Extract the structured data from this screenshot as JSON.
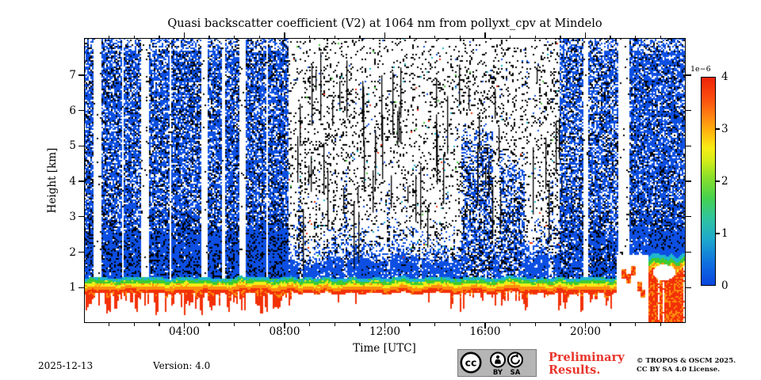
{
  "chart_data": {
    "type": "heatmap",
    "title": "Quasi backscatter coefficient (V2) at 1064 nm from pollyxt_cpv at Mindelo",
    "xlabel": "Time [UTC]",
    "ylabel": "Height [km]",
    "x_range_hours": [
      0,
      24
    ],
    "y_range_km": [
      0,
      8.05
    ],
    "x_major_ticks": [
      {
        "hour": 4,
        "label": "04:00"
      },
      {
        "hour": 8,
        "label": "08:00"
      },
      {
        "hour": 12,
        "label": "12:00"
      },
      {
        "hour": 16,
        "label": "16:00"
      },
      {
        "hour": 20,
        "label": "20:00"
      }
    ],
    "x_minor_tick_hours": [
      1,
      2,
      3,
      5,
      6,
      7,
      9,
      10,
      11,
      13,
      14,
      15,
      17,
      18,
      19,
      21,
      22,
      23
    ],
    "y_tick_km": [
      1,
      2,
      3,
      4,
      5,
      6,
      7
    ],
    "grid": false,
    "colorbar": {
      "scale_label": "1e−6",
      "min": 0,
      "max": 4,
      "tick_values": [
        0,
        1,
        2,
        3,
        4
      ],
      "tick_labels": [
        "0",
        "1",
        "2",
        "3",
        "4"
      ],
      "marked_ticks": [
        1,
        2,
        3
      ],
      "gradient_stops": [
        [
          0.0,
          "#0a46e0"
        ],
        [
          0.1,
          "#0f6ee0"
        ],
        [
          0.22,
          "#1ea8cc"
        ],
        [
          0.32,
          "#2fc4a0"
        ],
        [
          0.42,
          "#46d24e"
        ],
        [
          0.52,
          "#8adf2a"
        ],
        [
          0.6,
          "#d3ec1a"
        ],
        [
          0.66,
          "#f8ed14"
        ],
        [
          0.74,
          "#ffb50e"
        ],
        [
          0.82,
          "#ff7f12"
        ],
        [
          0.9,
          "#fb4c0e"
        ],
        [
          1.0,
          "#ee2408"
        ]
      ]
    },
    "field": {
      "palette": {
        "blue": "#0d4fe2",
        "cyan": "#1eb6cd",
        "green": "#3ecb2e",
        "yellow": "#f3ee18",
        "orange": "#ff8d0e",
        "red": "#f23008",
        "black": "#000000",
        "white": "#ffffff"
      },
      "cloud_bands": [
        [
          0.0,
          0.38,
          8.05,
          0.8
        ],
        [
          0.7,
          2.3,
          8.05,
          0.82
        ],
        [
          2.6,
          4.67,
          8.05,
          0.82
        ],
        [
          4.93,
          6.2,
          8.05,
          0.82
        ],
        [
          6.47,
          8.15,
          8.05,
          0.85
        ],
        [
          8.55,
          8.72,
          4.0,
          0.3
        ],
        [
          10.35,
          10.5,
          5.0,
          0.3
        ],
        [
          12.05,
          12.2,
          4.5,
          0.28
        ],
        [
          13.35,
          13.5,
          3.5,
          0.25
        ],
        [
          15.05,
          16.3,
          5.8,
          0.55
        ],
        [
          16.55,
          17.6,
          5.0,
          0.5
        ],
        [
          18.55,
          18.75,
          4.5,
          0.3
        ],
        [
          18.95,
          19.9,
          8.05,
          0.72
        ],
        [
          20.1,
          21.3,
          8.05,
          0.75
        ],
        [
          21.75,
          24.0,
          8.05,
          0.88
        ]
      ],
      "white_gaps": [
        [
          0.38,
          0.7
        ],
        [
          1.5,
          1.58
        ],
        [
          2.3,
          2.6
        ],
        [
          3.42,
          3.5
        ],
        [
          4.67,
          4.93
        ],
        [
          5.52,
          5.6
        ],
        [
          6.2,
          6.47
        ],
        [
          7.25,
          7.33
        ],
        [
          19.9,
          20.1
        ],
        [
          21.3,
          21.75
        ]
      ],
      "spike_zones": [
        [
          0.0,
          8.3,
          0.6
        ],
        [
          8.3,
          10.0,
          0.18
        ],
        [
          10.0,
          11.2,
          0.35
        ],
        [
          11.2,
          14.2,
          0.14
        ],
        [
          14.2,
          17.7,
          0.52
        ],
        [
          17.7,
          18.9,
          0.2
        ],
        [
          18.9,
          21.25,
          0.5
        ],
        [
          22.5,
          24.0,
          0.9
        ]
      ],
      "white_bottom_hours": [
        21.25,
        22.5
      ],
      "orange_mass_hours": [
        22.5,
        24.0
      ],
      "float_blobs": [
        [
          21.55,
          1.4
        ],
        [
          21.72,
          1.28
        ],
        [
          21.9,
          1.5
        ],
        [
          22.15,
          1.05
        ],
        [
          22.3,
          0.85
        ]
      ],
      "noise": {
        "base_density": 0.12,
        "blue_fraction": 0.25,
        "color_fraction": 0.012
      },
      "boundary_layer": {
        "top_base_km": 1.8,
        "grad_top_km": 1.3,
        "grad_thickness_km": 0.34
      }
    }
  },
  "footer": {
    "date": "2025-12-13",
    "version": "Version: 4.0",
    "preliminary_line1": "Preliminary",
    "preliminary_line2": "Results.",
    "preliminary_color": "#e8352c",
    "copyright_line1": "© TROPOS & OSCM 2025.",
    "copyright_line2": "CC BY SA 4.0 License.",
    "cc_badge": {
      "cc": "cc",
      "by": "BY",
      "sa": "SA"
    }
  }
}
